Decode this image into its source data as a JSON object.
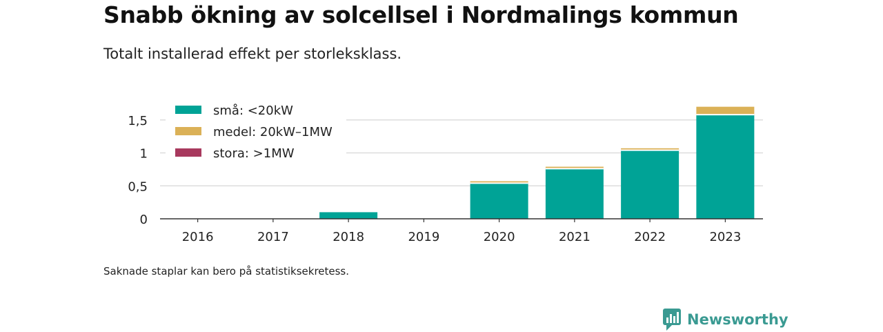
{
  "title": "Snabb ökning av solcellsel i Nordmalings kommun",
  "subtitle": "Totalt installerad effekt per storleksklass.",
  "footnote": "Saknade staplar kan bero på statistiksekretess.",
  "brand": {
    "name": "Newsworthy",
    "icon": "newsworthy-logo-icon",
    "color": "#3a9a92"
  },
  "chart_data": {
    "type": "bar",
    "stacked": true,
    "categories": [
      "2016",
      "2017",
      "2018",
      "2019",
      "2020",
      "2021",
      "2022",
      "2023"
    ],
    "series": [
      {
        "name": "små: <20kW",
        "color": "#00a396",
        "values": [
          0,
          0,
          0.1,
          0,
          0.54,
          0.76,
          1.04,
          1.58
        ]
      },
      {
        "name": "medel: 20kW–1MW",
        "color": "#dbb157",
        "values": [
          0,
          0,
          0,
          0,
          0.03,
          0.03,
          0.03,
          0.12
        ]
      },
      {
        "name": "stora: >1MW",
        "color": "#a8395e",
        "values": [
          0,
          0,
          0,
          0,
          0,
          0,
          0,
          0
        ]
      }
    ],
    "yticks": [
      0,
      0.5,
      1,
      1.5
    ],
    "ytick_labels": [
      "0",
      "0,5",
      "1",
      "1,5"
    ],
    "ylim": [
      0,
      1.7
    ],
    "grid": true,
    "legend_position": "top-left"
  }
}
